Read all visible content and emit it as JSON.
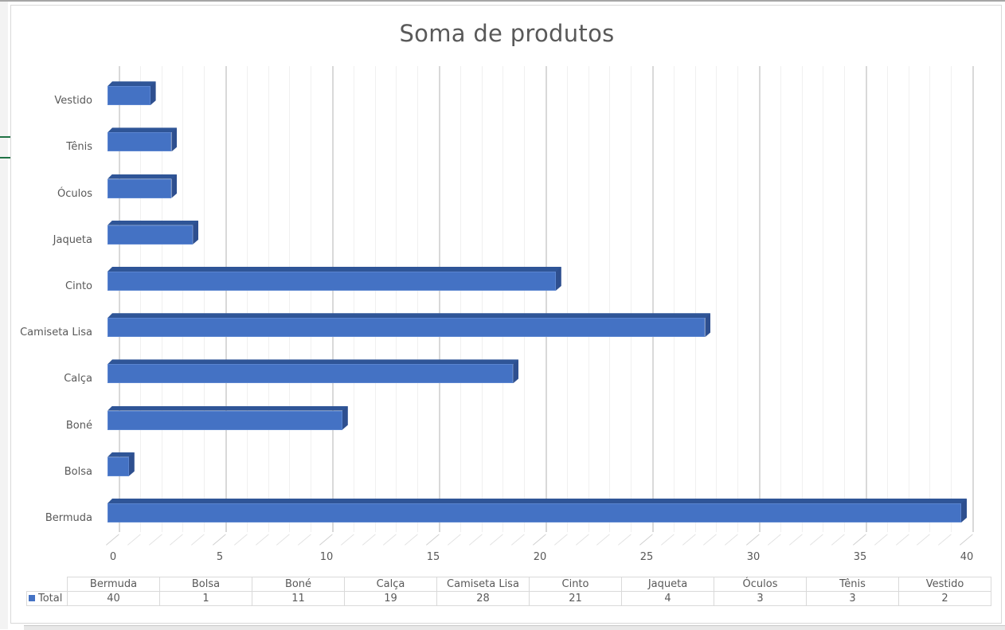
{
  "chart_data": {
    "type": "bar",
    "orientation": "horizontal",
    "style": "3d-clustered-bar",
    "title": "Soma de produtos",
    "categories": [
      "Bermuda",
      "Bolsa",
      "Boné",
      "Calça",
      "Camiseta Lisa",
      "Cinto",
      "Jaqueta",
      "Óculos",
      "Tênis",
      "Vestido"
    ],
    "series": [
      {
        "name": "Total",
        "color": "#4472c4",
        "values": [
          40,
          1,
          11,
          19,
          28,
          21,
          4,
          3,
          3,
          2
        ]
      }
    ],
    "xlabel": "",
    "ylabel": "",
    "xlim": [
      0,
      40
    ],
    "x_ticks": [
      "0",
      "5",
      "10",
      "15",
      "20",
      "25",
      "30",
      "35",
      "40"
    ],
    "grid": true,
    "legend_position": "data-table-bottom"
  },
  "chart": {
    "title": "Soma de produtos",
    "axis_categories_top_to_bottom": [
      "Vestido",
      "Tênis",
      "Óculos",
      "Jaqueta",
      "Cinto",
      "Camiseta Lisa",
      "Calça",
      "Boné",
      "Bolsa",
      "Bermuda"
    ],
    "x_ticks": [
      "0",
      "5",
      "10",
      "15",
      "20",
      "25",
      "30",
      "35",
      "40"
    ]
  },
  "data_table": {
    "headers": [
      "Bermuda",
      "Bolsa",
      "Boné",
      "Calça",
      "Camiseta Lisa",
      "Cinto",
      "Jaqueta",
      "Óculos",
      "Tênis",
      "Vestido"
    ],
    "series_label": "Total",
    "values": [
      "40",
      "1",
      "11",
      "19",
      "28",
      "21",
      "4",
      "3",
      "3",
      "2"
    ]
  },
  "colors": {
    "bar_front": "#4472c4",
    "bar_top": "#2f5597",
    "bar_side": "#2e4f8f",
    "text": "#595959",
    "gridline": "#d9d9d9"
  }
}
